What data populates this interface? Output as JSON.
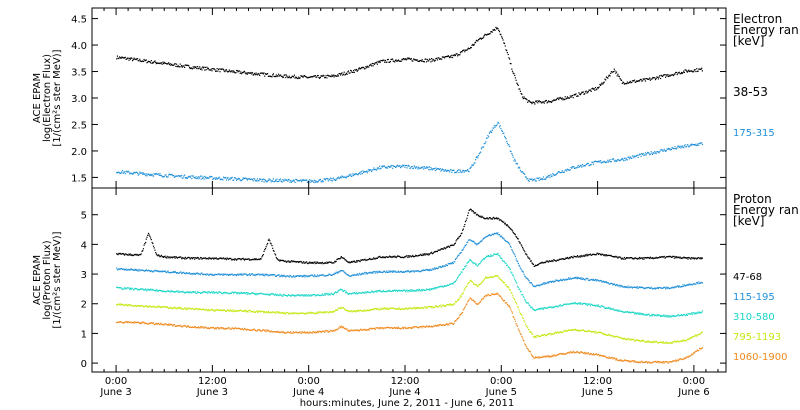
{
  "chart_data": [
    {
      "type": "scatter",
      "panel": "electron",
      "ylabel": [
        "ACE EPAM",
        "log(Electron Flux)",
        "[1/(cm²s ster MeV)]"
      ],
      "ylim": [
        1.3,
        4.7
      ],
      "yticks": [
        {
          "v": 1.5,
          "label": "1.5"
        },
        {
          "v": 2.0,
          "label": "2.0"
        },
        {
          "v": 2.5,
          "label": "2.5"
        },
        {
          "v": 3.0,
          "label": "3.0"
        },
        {
          "v": 3.5,
          "label": "3.5"
        },
        {
          "v": 4.0,
          "label": "4.0"
        },
        {
          "v": 4.5,
          "label": "4.5"
        }
      ],
      "legend": {
        "title": [
          "Electron",
          "Energy ran",
          "[keV]"
        ],
        "entries": [
          "38-53",
          "175-315"
        ]
      },
      "series": [
        {
          "name": "38-53",
          "color": "#000000",
          "points": [
            [
              0,
              3.78
            ],
            [
              6,
              3.72
            ],
            [
              12,
              3.66
            ],
            [
              18,
              3.6
            ],
            [
              24,
              3.55
            ],
            [
              30,
              3.5
            ],
            [
              36,
              3.46
            ],
            [
              42,
              3.42
            ],
            [
              48,
              3.4
            ],
            [
              54,
              3.42
            ],
            [
              60,
              3.54
            ],
            [
              66,
              3.7
            ],
            [
              72,
              3.74
            ],
            [
              78,
              3.72
            ],
            [
              84,
              3.8
            ],
            [
              88,
              3.95
            ],
            [
              90,
              4.1
            ],
            [
              93,
              4.25
            ],
            [
              95,
              4.35
            ],
            [
              97,
              3.95
            ],
            [
              99,
              3.45
            ],
            [
              101,
              3.05
            ],
            [
              103,
              2.92
            ],
            [
              108,
              2.95
            ],
            [
              114,
              3.05
            ],
            [
              120,
              3.2
            ],
            [
              124,
              3.55
            ],
            [
              126,
              3.3
            ],
            [
              132,
              3.35
            ],
            [
              138,
              3.45
            ],
            [
              142,
              3.52
            ],
            [
              146,
              3.55
            ]
          ]
        },
        {
          "name": "175-315",
          "color": "#1e8fd8",
          "points": [
            [
              0,
              1.62
            ],
            [
              6,
              1.58
            ],
            [
              12,
              1.55
            ],
            [
              18,
              1.52
            ],
            [
              24,
              1.5
            ],
            [
              30,
              1.48
            ],
            [
              36,
              1.46
            ],
            [
              42,
              1.45
            ],
            [
              48,
              1.44
            ],
            [
              54,
              1.47
            ],
            [
              60,
              1.58
            ],
            [
              66,
              1.7
            ],
            [
              72,
              1.72
            ],
            [
              78,
              1.68
            ],
            [
              84,
              1.62
            ],
            [
              88,
              1.65
            ],
            [
              90,
              1.9
            ],
            [
              93,
              2.35
            ],
            [
              95,
              2.55
            ],
            [
              97,
              2.25
            ],
            [
              99,
              1.85
            ],
            [
              101,
              1.6
            ],
            [
              103,
              1.45
            ],
            [
              106,
              1.48
            ],
            [
              110,
              1.6
            ],
            [
              114,
              1.7
            ],
            [
              120,
              1.8
            ],
            [
              126,
              1.85
            ],
            [
              132,
              1.95
            ],
            [
              138,
              2.05
            ],
            [
              142,
              2.1
            ],
            [
              146,
              2.15
            ]
          ]
        }
      ]
    },
    {
      "type": "scatter",
      "panel": "proton",
      "ylabel": [
        "ACE EPAM",
        "log(Proton Flux)",
        "[1/(cm²s ster MeV)]"
      ],
      "ylim": [
        -0.3,
        5.9
      ],
      "yticks": [
        {
          "v": 0,
          "label": "0"
        },
        {
          "v": 1,
          "label": "1"
        },
        {
          "v": 2,
          "label": "2"
        },
        {
          "v": 3,
          "label": "3"
        },
        {
          "v": 4,
          "label": "4"
        },
        {
          "v": 5,
          "label": "5"
        }
      ],
      "legend": {
        "title": [
          "Proton",
          "Energy ran",
          "[keV]"
        ],
        "entries": [
          "47-68",
          "115-195",
          "310-580",
          "795-1193",
          "1060-1900"
        ]
      },
      "series": [
        {
          "name": "47-68",
          "color": "#000000",
          "points": [
            [
              0,
              3.7
            ],
            [
              6,
              3.65
            ],
            [
              8,
              4.4
            ],
            [
              10,
              3.65
            ],
            [
              12,
              3.6
            ],
            [
              18,
              3.55
            ],
            [
              24,
              3.55
            ],
            [
              30,
              3.52
            ],
            [
              36,
              3.52
            ],
            [
              38,
              4.2
            ],
            [
              40,
              3.5
            ],
            [
              42,
              3.45
            ],
            [
              48,
              3.4
            ],
            [
              54,
              3.4
            ],
            [
              56,
              3.6
            ],
            [
              58,
              3.4
            ],
            [
              62,
              3.5
            ],
            [
              66,
              3.6
            ],
            [
              72,
              3.6
            ],
            [
              78,
              3.7
            ],
            [
              84,
              4.0
            ],
            [
              86,
              4.4
            ],
            [
              88,
              5.2
            ],
            [
              90,
              5.0
            ],
            [
              92,
              4.9
            ],
            [
              95,
              4.9
            ],
            [
              98,
              4.6
            ],
            [
              100,
              4.2
            ],
            [
              102,
              3.7
            ],
            [
              104,
              3.3
            ],
            [
              106,
              3.4
            ],
            [
              110,
              3.5
            ],
            [
              114,
              3.6
            ],
            [
              120,
              3.7
            ],
            [
              126,
              3.55
            ],
            [
              132,
              3.55
            ],
            [
              138,
              3.6
            ],
            [
              142,
              3.55
            ],
            [
              146,
              3.55
            ]
          ]
        },
        {
          "name": "115-195",
          "color": "#1e8fd8",
          "points": [
            [
              0,
              3.2
            ],
            [
              6,
              3.15
            ],
            [
              12,
              3.1
            ],
            [
              18,
              3.05
            ],
            [
              24,
              3.0
            ],
            [
              30,
              3.0
            ],
            [
              36,
              3.0
            ],
            [
              42,
              2.95
            ],
            [
              48,
              2.95
            ],
            [
              54,
              3.0
            ],
            [
              56,
              3.15
            ],
            [
              58,
              2.95
            ],
            [
              62,
              3.05
            ],
            [
              66,
              3.1
            ],
            [
              72,
              3.1
            ],
            [
              78,
              3.15
            ],
            [
              84,
              3.4
            ],
            [
              86,
              3.8
            ],
            [
              88,
              4.2
            ],
            [
              90,
              4.0
            ],
            [
              92,
              4.3
            ],
            [
              95,
              4.4
            ],
            [
              98,
              4.0
            ],
            [
              100,
              3.4
            ],
            [
              102,
              2.9
            ],
            [
              104,
              2.6
            ],
            [
              108,
              2.75
            ],
            [
              114,
              2.9
            ],
            [
              120,
              2.8
            ],
            [
              126,
              2.6
            ],
            [
              132,
              2.55
            ],
            [
              138,
              2.55
            ],
            [
              142,
              2.65
            ],
            [
              146,
              2.75
            ]
          ]
        },
        {
          "name": "310-580",
          "color": "#19d6c6",
          "points": [
            [
              0,
              2.55
            ],
            [
              6,
              2.5
            ],
            [
              12,
              2.45
            ],
            [
              18,
              2.4
            ],
            [
              24,
              2.4
            ],
            [
              30,
              2.38
            ],
            [
              36,
              2.35
            ],
            [
              42,
              2.3
            ],
            [
              48,
              2.3
            ],
            [
              54,
              2.35
            ],
            [
              56,
              2.5
            ],
            [
              58,
              2.35
            ],
            [
              62,
              2.4
            ],
            [
              66,
              2.45
            ],
            [
              72,
              2.45
            ],
            [
              78,
              2.5
            ],
            [
              84,
              2.7
            ],
            [
              86,
              3.1
            ],
            [
              88,
              3.5
            ],
            [
              90,
              3.3
            ],
            [
              92,
              3.6
            ],
            [
              95,
              3.7
            ],
            [
              98,
              3.2
            ],
            [
              100,
              2.6
            ],
            [
              102,
              2.1
            ],
            [
              104,
              1.8
            ],
            [
              108,
              1.9
            ],
            [
              114,
              2.05
            ],
            [
              120,
              1.95
            ],
            [
              126,
              1.75
            ],
            [
              132,
              1.65
            ],
            [
              138,
              1.6
            ],
            [
              142,
              1.65
            ],
            [
              146,
              1.75
            ]
          ]
        },
        {
          "name": "795-1193",
          "color": "#c8e614",
          "points": [
            [
              0,
              2.0
            ],
            [
              6,
              1.95
            ],
            [
              12,
              1.9
            ],
            [
              18,
              1.85
            ],
            [
              24,
              1.8
            ],
            [
              30,
              1.78
            ],
            [
              36,
              1.75
            ],
            [
              42,
              1.7
            ],
            [
              48,
              1.7
            ],
            [
              54,
              1.75
            ],
            [
              56,
              1.9
            ],
            [
              58,
              1.75
            ],
            [
              62,
              1.8
            ],
            [
              66,
              1.85
            ],
            [
              72,
              1.85
            ],
            [
              78,
              1.9
            ],
            [
              84,
              2.0
            ],
            [
              86,
              2.3
            ],
            [
              88,
              2.8
            ],
            [
              90,
              2.6
            ],
            [
              92,
              2.9
            ],
            [
              95,
              2.95
            ],
            [
              98,
              2.5
            ],
            [
              100,
              1.9
            ],
            [
              102,
              1.3
            ],
            [
              104,
              0.9
            ],
            [
              108,
              1.0
            ],
            [
              114,
              1.15
            ],
            [
              120,
              1.05
            ],
            [
              126,
              0.85
            ],
            [
              132,
              0.75
            ],
            [
              138,
              0.7
            ],
            [
              142,
              0.8
            ],
            [
              146,
              1.05
            ]
          ]
        },
        {
          "name": "1060-1900",
          "color": "#f08a1e",
          "points": [
            [
              0,
              1.4
            ],
            [
              6,
              1.38
            ],
            [
              12,
              1.32
            ],
            [
              18,
              1.25
            ],
            [
              24,
              1.2
            ],
            [
              30,
              1.18
            ],
            [
              36,
              1.12
            ],
            [
              42,
              1.05
            ],
            [
              48,
              1.05
            ],
            [
              54,
              1.1
            ],
            [
              56,
              1.25
            ],
            [
              58,
              1.1
            ],
            [
              62,
              1.15
            ],
            [
              66,
              1.2
            ],
            [
              72,
              1.2
            ],
            [
              78,
              1.25
            ],
            [
              84,
              1.35
            ],
            [
              86,
              1.7
            ],
            [
              88,
              2.2
            ],
            [
              90,
              2.0
            ],
            [
              92,
              2.3
            ],
            [
              95,
              2.35
            ],
            [
              98,
              1.9
            ],
            [
              100,
              1.2
            ],
            [
              102,
              0.6
            ],
            [
              104,
              0.2
            ],
            [
              108,
              0.25
            ],
            [
              114,
              0.4
            ],
            [
              120,
              0.3
            ],
            [
              126,
              0.1
            ],
            [
              132,
              0.05
            ],
            [
              138,
              0.05
            ],
            [
              142,
              0.2
            ],
            [
              146,
              0.55
            ]
          ]
        }
      ]
    }
  ],
  "x_axis": {
    "xlim": [
      -6,
      152
    ],
    "ticks": [
      {
        "x": 0,
        "label1": "0:00",
        "label2": "June 3"
      },
      {
        "x": 24,
        "label1": "12:00",
        "label2": "June 3"
      },
      {
        "x": 48,
        "label1": "0:00",
        "label2": "June 4"
      },
      {
        "x": 72,
        "label1": "12:00",
        "label2": "June 4"
      },
      {
        "x": 96,
        "label1": "0:00",
        "label2": "June 5"
      },
      {
        "x": 120,
        "label1": "12:00",
        "label2": "June 5"
      },
      {
        "x": 144,
        "label1": "0:00",
        "label2": "June 6"
      }
    ],
    "title": "hours:minutes, June  2, 2011 - June  6, 2011"
  }
}
